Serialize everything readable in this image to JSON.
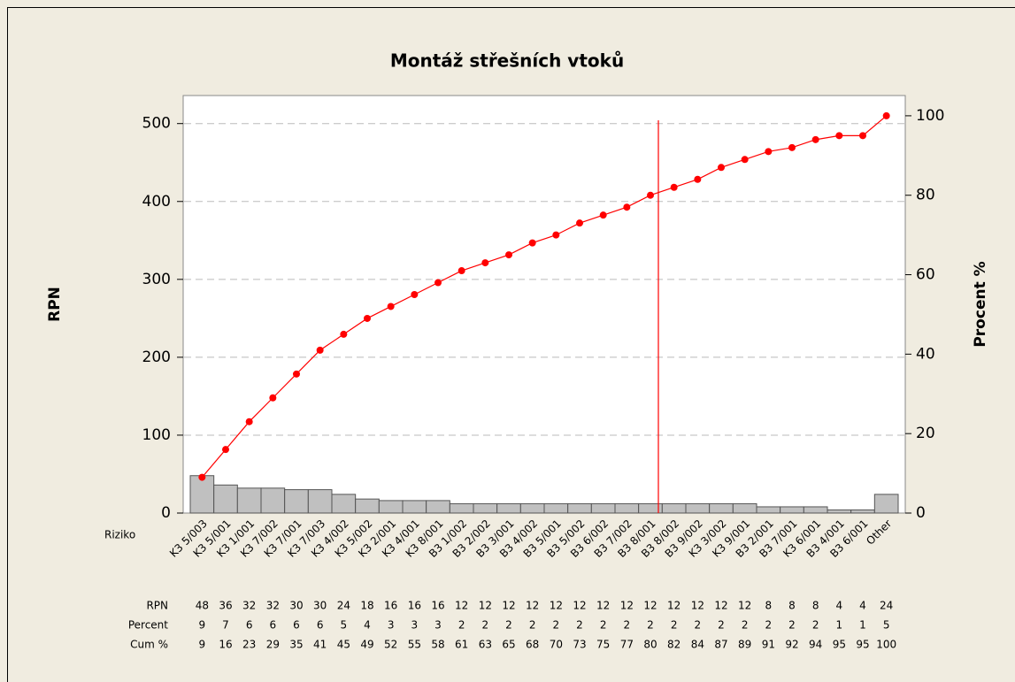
{
  "chart_data": {
    "type": "pareto",
    "title": "Montáž střešních vtoků",
    "ylabel": "RPN",
    "y2label": "Procent %",
    "categories": [
      "K3 5/003",
      "K3 5/001",
      "K3 1/001",
      "K3 7/002",
      "K3 7/001",
      "K3 7/003",
      "K3 4/002",
      "K3 5/002",
      "K3 2/001",
      "K3 4/001",
      "K3 8/001",
      "B3 1/002",
      "B3 2/002",
      "B3 3/001",
      "B3 4/002",
      "B3 5/001",
      "B3 5/002",
      "B3 6/002",
      "B3 7/002",
      "B3 8/001",
      "B3 8/002",
      "B3 9/002",
      "K3 3/002",
      "K3 9/001",
      "B3 2/001",
      "B3 7/001",
      "K3 6/001",
      "B3 4/001",
      "B3 6/001",
      "Other"
    ],
    "values": [
      48,
      36,
      32,
      32,
      30,
      30,
      24,
      18,
      16,
      16,
      16,
      12,
      12,
      12,
      12,
      12,
      12,
      12,
      12,
      12,
      12,
      12,
      12,
      12,
      8,
      8,
      8,
      4,
      4,
      24
    ],
    "color": "#c0c0c0",
    "percent": [
      9,
      7,
      6,
      6,
      6,
      6,
      5,
      4,
      3,
      3,
      3,
      2,
      2,
      2,
      2,
      2,
      2,
      2,
      2,
      2,
      2,
      2,
      2,
      2,
      2,
      2,
      2,
      1,
      1,
      5
    ],
    "cumulative": {
      "color": "#ff0000",
      "axis": "y2",
      "values": [
        9,
        16,
        23,
        29,
        35,
        41,
        45,
        49,
        52,
        55,
        58,
        61,
        63,
        65,
        68,
        70,
        73,
        75,
        77,
        80,
        82,
        84,
        87,
        89,
        91,
        92,
        94,
        95,
        95,
        100
      ]
    },
    "ylim": [
      0,
      536
    ],
    "yticks": [
      0,
      100,
      200,
      300,
      400,
      500
    ],
    "y2lim": [
      0,
      105.1
    ],
    "y2ticks": [
      0,
      20,
      40,
      60,
      80,
      100
    ],
    "grid": true,
    "table_labels": {
      "category": "Riziko",
      "values": "RPN",
      "percent": "Percent",
      "cumulative": "Cum %"
    }
  }
}
